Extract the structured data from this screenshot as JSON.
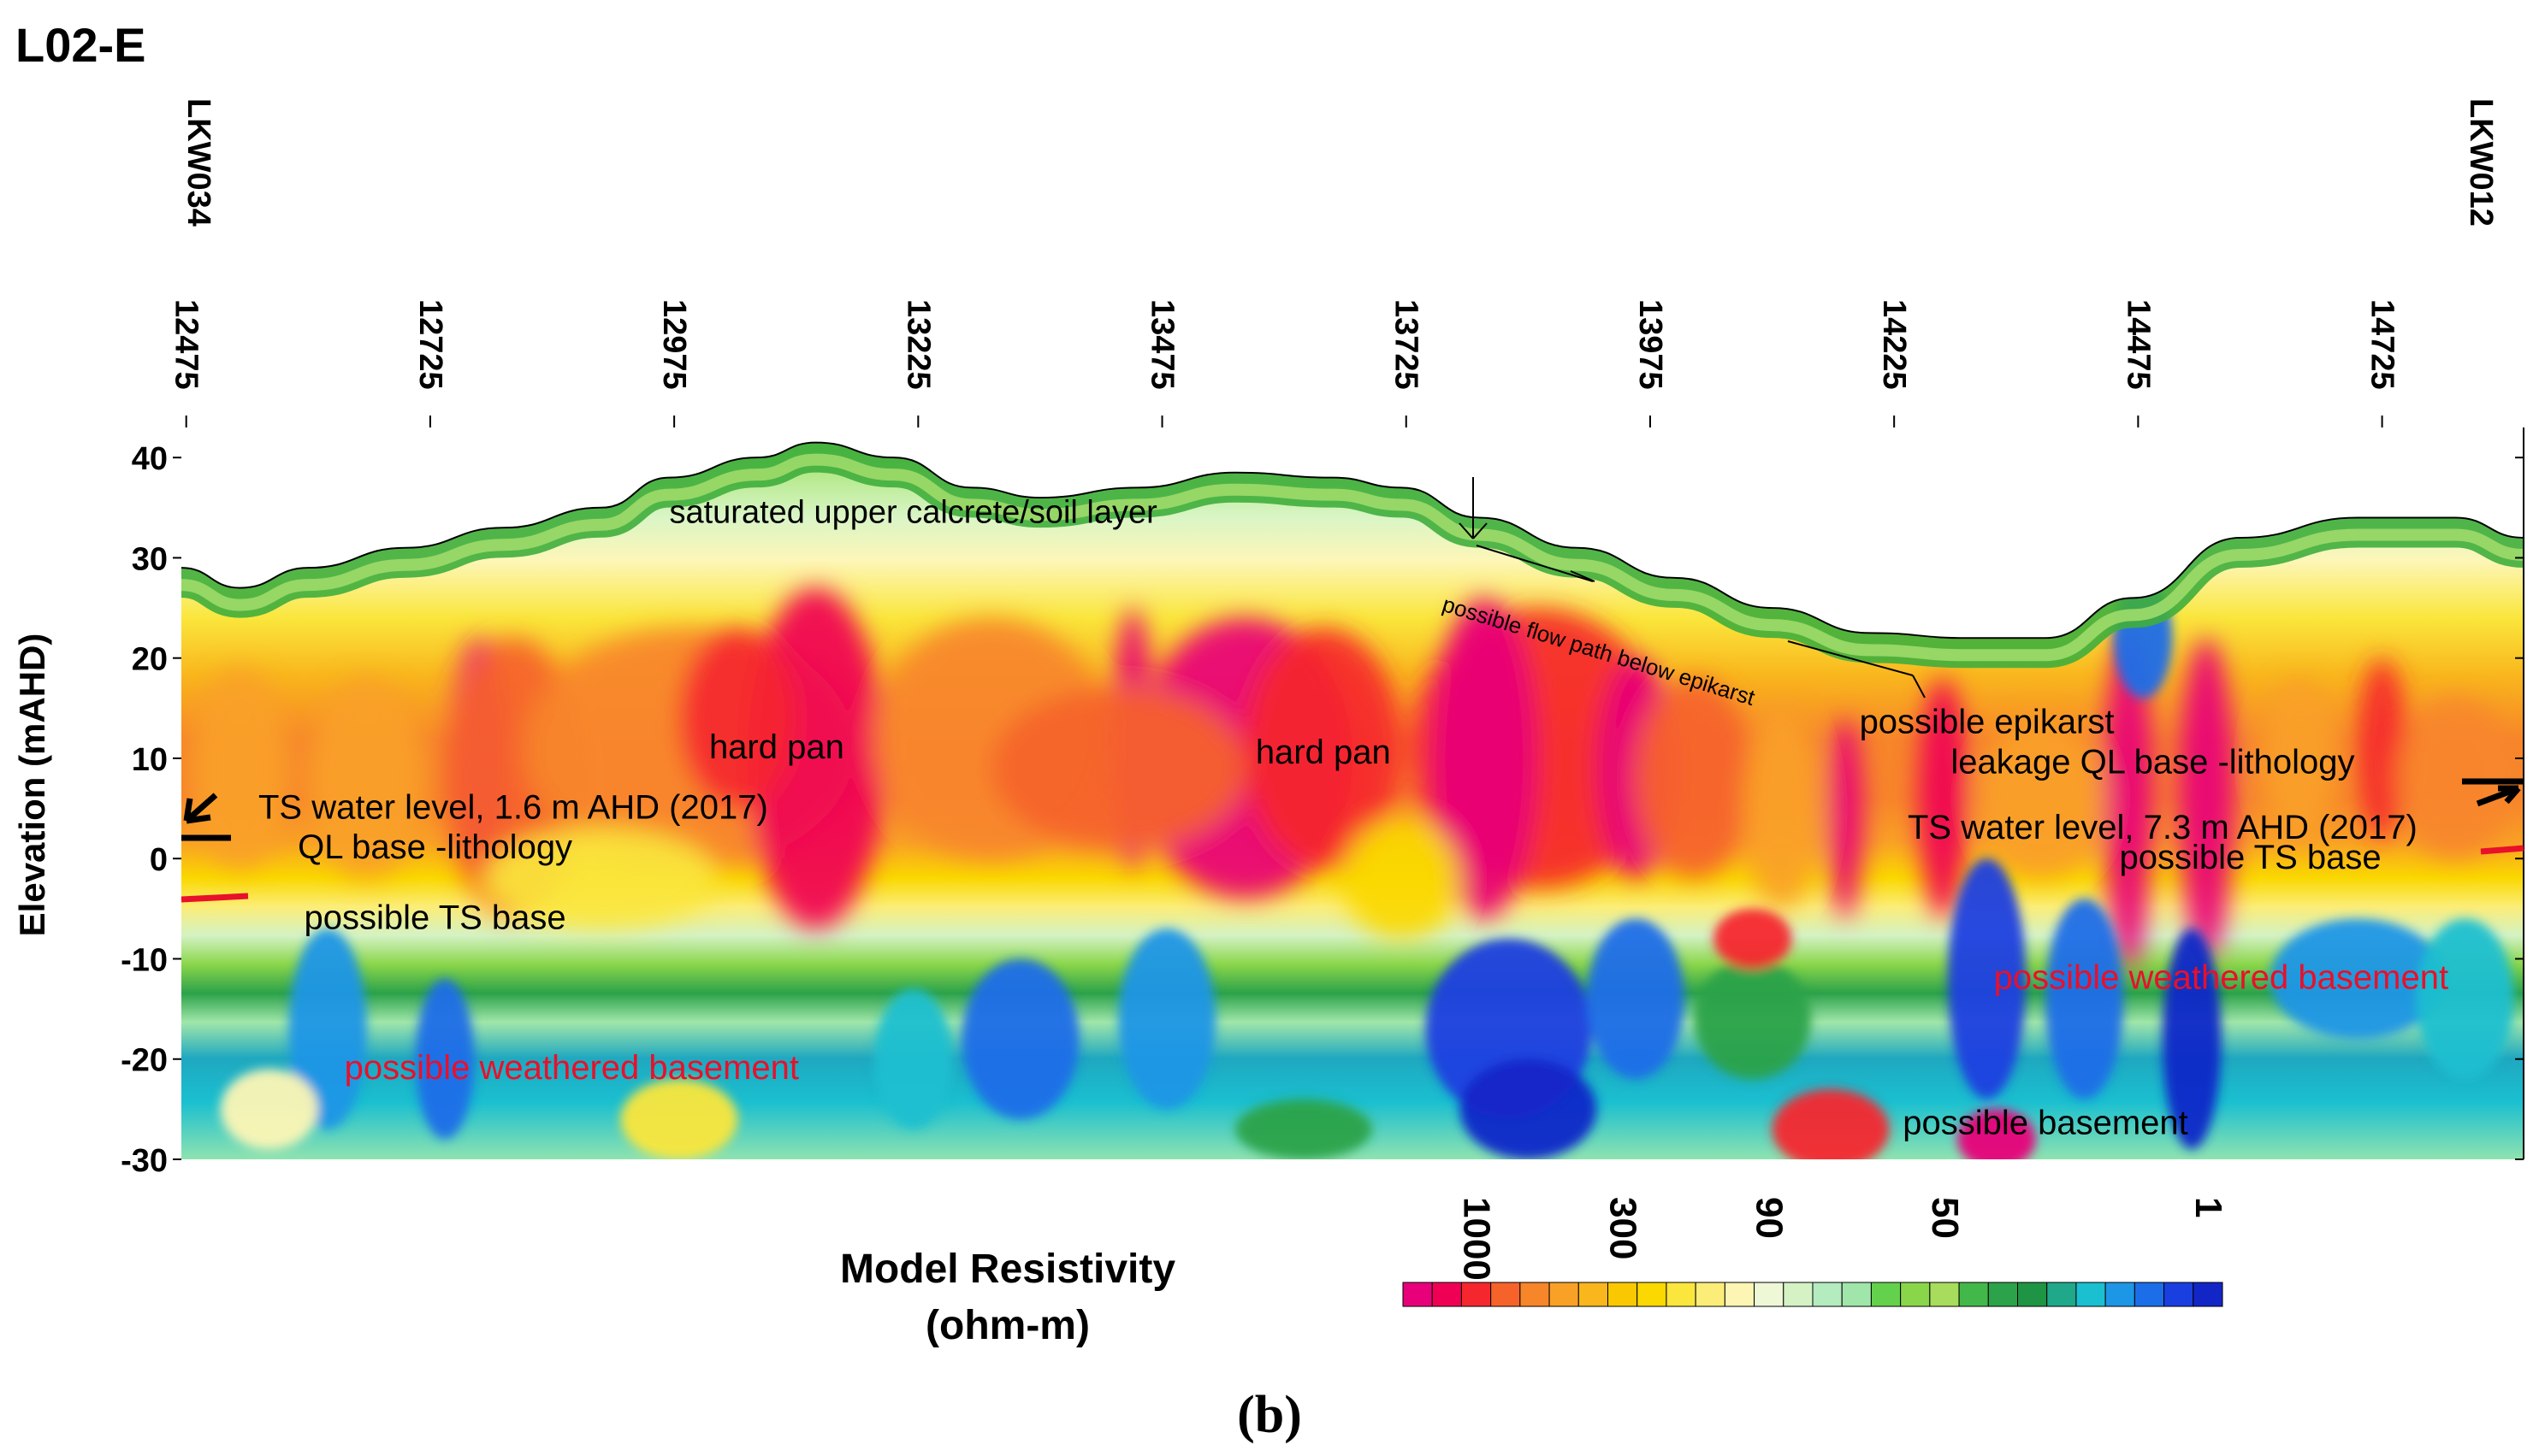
{
  "figure": {
    "section_label": "L02-E",
    "caption": "(b)"
  },
  "chart_data": {
    "type": "heatmap",
    "title": "L02-E",
    "xlabel": "",
    "ylabel": "Elevation (mAHD)",
    "x_tick_labels": [
      "12475",
      "12725",
      "12975",
      "13225",
      "13475",
      "13725",
      "13975",
      "14225",
      "14475",
      "14725"
    ],
    "x_ticks": [
      12475,
      12725,
      12975,
      13225,
      13475,
      13725,
      13975,
      14225,
      14475,
      14725
    ],
    "xlim": [
      12470,
      14870
    ],
    "y_ticks": [
      40,
      30,
      20,
      10,
      0,
      -10,
      -20,
      -30
    ],
    "y_tick_labels": [
      "40",
      "30",
      "20",
      "10",
      "0",
      "-10",
      "-20",
      "-30"
    ],
    "ylim": [
      -30,
      43
    ],
    "bores": [
      {
        "name": "LKW034",
        "x": 12475
      },
      {
        "name": "LKW012",
        "x": 14820
      }
    ],
    "surface_profile": [
      [
        12470,
        29
      ],
      [
        12530,
        27
      ],
      [
        12600,
        29
      ],
      [
        12700,
        31
      ],
      [
        12800,
        33
      ],
      [
        12900,
        35
      ],
      [
        12970,
        38
      ],
      [
        13060,
        40
      ],
      [
        13120,
        41.5
      ],
      [
        13200,
        40
      ],
      [
        13280,
        37
      ],
      [
        13350,
        36
      ],
      [
        13450,
        37
      ],
      [
        13550,
        38.5
      ],
      [
        13650,
        38
      ],
      [
        13720,
        37
      ],
      [
        13800,
        34
      ],
      [
        13900,
        31
      ],
      [
        14000,
        28
      ],
      [
        14100,
        25
      ],
      [
        14200,
        22.5
      ],
      [
        14300,
        22
      ],
      [
        14380,
        22
      ],
      [
        14470,
        26
      ],
      [
        14580,
        32
      ],
      [
        14700,
        34
      ],
      [
        14800,
        34
      ],
      [
        14870,
        32
      ]
    ],
    "colorbar": {
      "title": "Model Resistivity",
      "units": "(ohm-m)",
      "tick_labels": [
        "1000",
        "300",
        "90",
        "50",
        "1"
      ],
      "colors": [
        "#e8007a",
        "#f00055",
        "#f5262e",
        "#f5632a",
        "#f7852a",
        "#f9a126",
        "#f9b61d",
        "#fac800",
        "#fad800",
        "#fae63c",
        "#fbed78",
        "#fdf5b4",
        "#eef7d6",
        "#d4f2c4",
        "#b4ebbf",
        "#a0e6aa",
        "#63d14c",
        "#8ad64a",
        "#a8dc5c",
        "#43b84a",
        "#2ca24a",
        "#1e9444",
        "#1fa88a",
        "#1abfd0",
        "#1d96e6",
        "#1b6ee8",
        "#1a3fe0",
        "#1226c8"
      ]
    },
    "annotations": [
      {
        "text": "saturated upper calcrete/soil layer",
        "color": "#000000"
      },
      {
        "text": "possible flow path below epikarst",
        "color": "#000000"
      },
      {
        "text": "hard pan",
        "color": "#000000"
      },
      {
        "text": "hard pan",
        "color": "#000000"
      },
      {
        "text": "possible epikarst",
        "color": "#000000"
      },
      {
        "text": "leakage QL base -lithology",
        "color": "#000000"
      },
      {
        "text": "TS water level, 1.6 m AHD (2017)",
        "color": "#000000"
      },
      {
        "text": "QL base -lithology",
        "color": "#000000"
      },
      {
        "text": "possible TS base",
        "color": "#000000"
      },
      {
        "text": "TS water level, 7.3 m AHD (2017)",
        "color": "#000000"
      },
      {
        "text": "possible TS base",
        "color": "#000000"
      },
      {
        "text": "possible weathered basement",
        "color": "#e8102a"
      },
      {
        "text": "possible weathered basement",
        "color": "#e8102a"
      },
      {
        "text": "possible basement",
        "color": "#000000"
      }
    ],
    "water_levels_mAHD": [
      {
        "label": "TS water level, 1.6 m AHD (2017)",
        "elevation": 1.6
      },
      {
        "label": "TS water level, 7.3 m AHD (2017)",
        "elevation": 7.3
      }
    ]
  }
}
